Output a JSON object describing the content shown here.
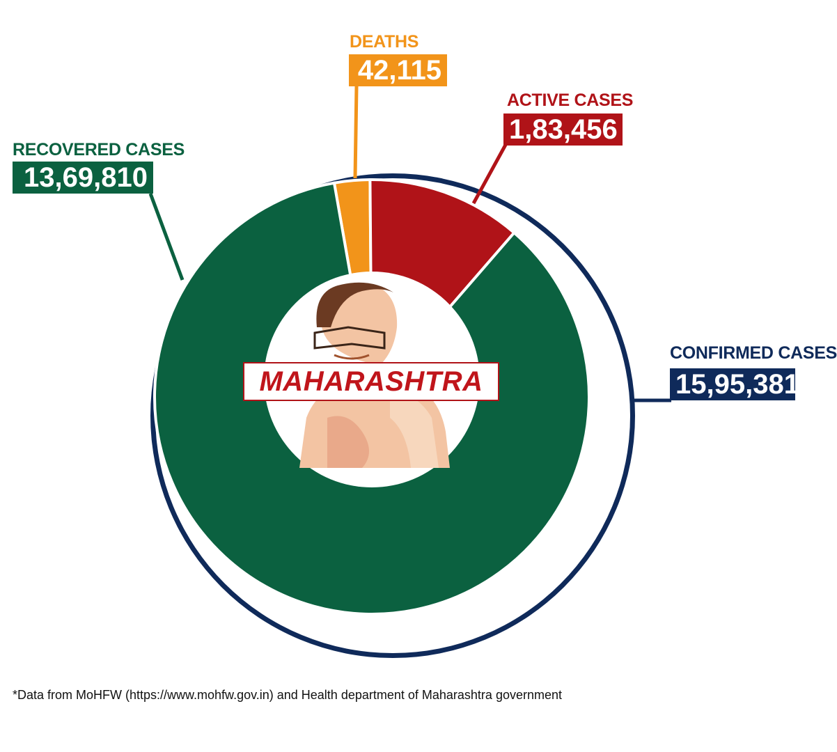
{
  "chart_data": {
    "type": "pie",
    "title": "MAHARASHTRA",
    "total": {
      "label": "CONFIRMED CASES",
      "value_text": "15,95,381",
      "value": 1595381
    },
    "slices": [
      {
        "label": "RECOVERED CASES",
        "value_text": "13,69,810",
        "value": 1369810,
        "color": "#0b6140"
      },
      {
        "label": "DEATHS",
        "value_text": "42,115",
        "value": 42115,
        "color": "#f2941a"
      },
      {
        "label": "ACTIVE CASES",
        "value_text": "1,83,456",
        "value": 183456,
        "color": "#b01318"
      }
    ],
    "ring_color": "#0f2a5a",
    "center_photo": "portrait illustration"
  },
  "colors": {
    "navy": "#0f2a5a",
    "green": "#0b6140",
    "orange": "#f2941a",
    "red": "#b01318"
  },
  "footnote": "*Data from MoHFW (https://www.mohfw.gov.in) and Health department of Maharashtra government"
}
